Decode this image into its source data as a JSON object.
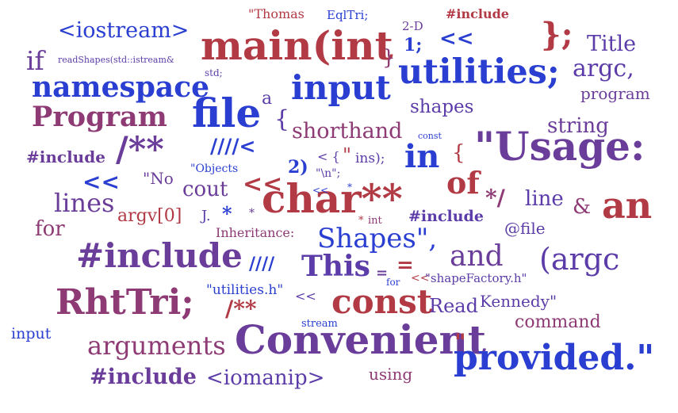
{
  "palette": {
    "red": "#b13a45",
    "purple": "#6a3d9a",
    "blue": "#2a3fd1",
    "violet": "#5b3ca8",
    "plum": "#8e3a74"
  },
  "words": [
    {
      "text": "\"Thomas",
      "color": "#b13a45"
    },
    {
      "text": "EqlTri;",
      "color": "#2a3fd1"
    },
    {
      "text": "#include",
      "color": "#b13a45"
    },
    {
      "text": "<iostream>",
      "color": "#2a3fd1"
    },
    {
      "text": "main(int",
      "color": "#b13a45"
    },
    {
      "text": "2-D",
      "color": "#6a3d9a"
    },
    {
      "text": "1;",
      "color": "#2a3fd1"
    },
    {
      "text": "<<",
      "color": "#2a3fd1"
    },
    {
      "text": "};",
      "color": "#b13a45"
    },
    {
      "text": "Title",
      "color": "#5b3ca8"
    },
    {
      "text": "if",
      "color": "#6a3d9a"
    },
    {
      "text": "readShapes(std::istream&",
      "color": "#5b3ca8"
    },
    {
      "text": "std;",
      "color": "#5b3ca8"
    },
    {
      "text": "}",
      "color": "#8e3a74"
    },
    {
      "text": "utilities;",
      "color": "#2a3fd1"
    },
    {
      "text": "argc,",
      "color": "#5b3ca8"
    },
    {
      "text": "namespace",
      "color": "#2a3fd1"
    },
    {
      "text": "a",
      "color": "#5b3ca8"
    },
    {
      "text": "input",
      "color": "#2a3fd1"
    },
    {
      "text": "program",
      "color": "#6a3d9a"
    },
    {
      "text": "Program",
      "color": "#8e3a74"
    },
    {
      "text": "file",
      "color": "#2a3fd1"
    },
    {
      "text": "{",
      "color": "#5b3ca8"
    },
    {
      "text": "shapes",
      "color": "#5b3ca8"
    },
    {
      "text": "shorthand",
      "color": "#8e3a74"
    },
    {
      "text": "const",
      "color": "#2a3fd1"
    },
    {
      "text": "string",
      "color": "#6a3d9a"
    },
    {
      "text": "#include",
      "color": "#6a3d9a"
    },
    {
      "text": "/**",
      "color": "#6a3d9a"
    },
    {
      "text": "////<",
      "color": "#2a3fd1"
    },
    {
      "text": "in",
      "color": "#2a3fd1"
    },
    {
      "text": "{",
      "color": "#b13a45"
    },
    {
      "text": "\"Usage:",
      "color": "#6a3d9a"
    },
    {
      "text": "\"Objects",
      "color": "#2a3fd1"
    },
    {
      "text": "2)",
      "color": "#2a3fd1"
    },
    {
      "text": "< {",
      "color": "#5b3ca8"
    },
    {
      "text": "\"",
      "color": "#b13a45"
    },
    {
      "text": "ins);",
      "color": "#5b3ca8"
    },
    {
      "text": "<<",
      "color": "#2a3fd1"
    },
    {
      "text": "\"No",
      "color": "#6a3d9a"
    },
    {
      "text": "cout",
      "color": "#6a3d9a"
    },
    {
      "text": "<<",
      "color": "#b13a45"
    },
    {
      "text": "\"\\n\";",
      "color": "#5b3ca8"
    },
    {
      "text": "*",
      "color": "#2a3fd1"
    },
    {
      "text": "char**",
      "color": "#b13a45"
    },
    {
      "text": "of",
      "color": "#b13a45"
    },
    {
      "text": "*/",
      "color": "#8e3a74"
    },
    {
      "text": "line",
      "color": "#5b3ca8"
    },
    {
      "text": "&",
      "color": "#8e3a74"
    },
    {
      "text": "an",
      "color": "#b13a45"
    },
    {
      "text": "<<",
      "color": "#2a3fd1"
    },
    {
      "text": "lines",
      "color": "#6a3d9a"
    },
    {
      "text": "argv[0]",
      "color": "#b13a45"
    },
    {
      "text": "J.",
      "color": "#5b3ca8"
    },
    {
      "text": "*",
      "color": "#2a3fd1"
    },
    {
      "text": "*",
      "color": "#6a3d9a"
    },
    {
      "text": "*",
      "color": "#b13a45"
    },
    {
      "text": "int",
      "color": "#8e3a74"
    },
    {
      "text": "#include",
      "color": "#5b3ca8"
    },
    {
      "text": "for",
      "color": "#8e3a74"
    },
    {
      "text": "Inheritance:",
      "color": "#8e3a74"
    },
    {
      "text": "Shapes\",",
      "color": "#2a3fd1"
    },
    {
      "text": "@file",
      "color": "#5b3ca8"
    },
    {
      "text": "#include",
      "color": "#6a3d9a"
    },
    {
      "text": "////",
      "color": "#2a3fd1"
    },
    {
      "text": "This",
      "color": "#5b3ca8"
    },
    {
      "text": "=",
      "color": "#6a3d9a"
    },
    {
      "text": "=",
      "color": "#b13a45"
    },
    {
      "text": "and",
      "color": "#6a3d9a"
    },
    {
      "text": "(argc",
      "color": "#5b3ca8"
    },
    {
      "text": "for",
      "color": "#2a3fd1"
    },
    {
      "text": "<<",
      "color": "#b13a45"
    },
    {
      "text": "\"shapeFactory.h\"",
      "color": "#5b3ca8"
    },
    {
      "text": "RhtTri;",
      "color": "#8e3a74"
    },
    {
      "text": "\"utilities.h\"",
      "color": "#2a3fd1"
    },
    {
      "text": "<<",
      "color": "#5b3ca8"
    },
    {
      "text": "const",
      "color": "#b13a45"
    },
    {
      "text": "Read",
      "color": "#5b3ca8"
    },
    {
      "text": "Kennedy\"",
      "color": "#5b3ca8"
    },
    {
      "text": "/**",
      "color": "#b13a45"
    },
    {
      "text": "stream",
      "color": "#2a3fd1"
    },
    {
      "text": "command",
      "color": "#8e3a74"
    },
    {
      "text": "input",
      "color": "#2a3fd1"
    },
    {
      "text": "arguments",
      "color": "#8e3a74"
    },
    {
      "text": "Convenient",
      "color": "#6a3d9a"
    },
    {
      "text": "\"",
      "color": "#b13a45"
    },
    {
      "text": "provided.\"",
      "color": "#2a3fd1"
    },
    {
      "text": "#include",
      "color": "#6a3d9a"
    },
    {
      "text": "<iomanip>",
      "color": "#5b3ca8"
    },
    {
      "text": "using",
      "color": "#8e3a74"
    }
  ]
}
